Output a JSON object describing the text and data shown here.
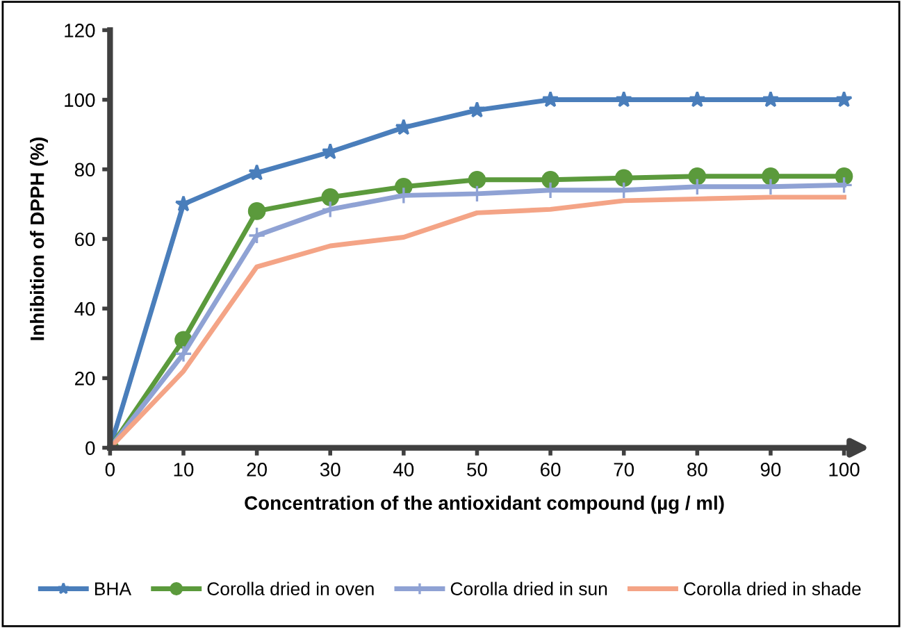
{
  "chart_data": {
    "type": "line",
    "xlabel": "Concentration of the antioxidant compound (µg / ml)",
    "ylabel": "Inhibition of DPPH (%)",
    "x": [
      0,
      10,
      20,
      30,
      40,
      50,
      60,
      70,
      80,
      90,
      100
    ],
    "series": [
      {
        "name": "BHA",
        "color": "#4a7ebb",
        "marker": "star",
        "values": [
          0,
          70,
          79,
          85,
          92,
          97,
          100,
          100,
          100,
          100,
          100
        ]
      },
      {
        "name": "Corolla dried in oven",
        "color": "#5b9a3c",
        "marker": "circle",
        "values": [
          0,
          31,
          68,
          72,
          75,
          77,
          77,
          77.5,
          78,
          78,
          78
        ]
      },
      {
        "name": "Corolla dried in sun",
        "color": "#8fa2d4",
        "marker": "cross",
        "values": [
          0,
          27,
          61,
          68.5,
          72.5,
          73,
          74,
          74,
          75,
          75,
          75.5
        ]
      },
      {
        "name": "Corolla dried in shade",
        "color": "#f4a486",
        "marker": "none",
        "values": [
          0,
          22,
          52,
          58,
          60.5,
          67.5,
          68.5,
          71,
          71.5,
          72,
          72
        ]
      }
    ],
    "xlim": [
      0,
      102
    ],
    "ylim": [
      0,
      120
    ],
    "xticks": [
      0,
      10,
      20,
      30,
      40,
      50,
      60,
      70,
      80,
      90,
      100
    ],
    "yticks": [
      0,
      20,
      40,
      60,
      80,
      100,
      120
    ],
    "grid": false,
    "legend": "bottom",
    "line_style": "solid"
  }
}
